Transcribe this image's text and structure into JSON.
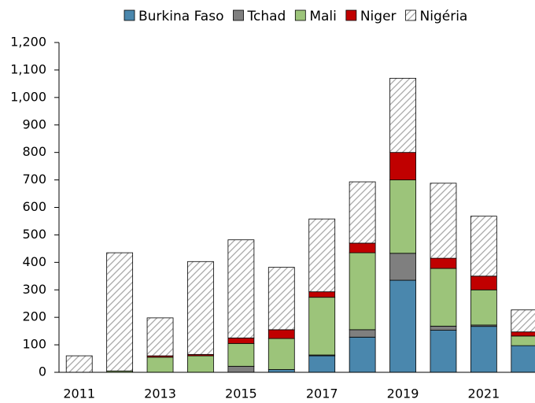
{
  "chart_data": {
    "type": "stacked_bar",
    "categories": [
      "2011",
      null,
      "2013",
      null,
      "2015",
      null,
      "2017",
      null,
      "2019",
      null,
      "2021",
      null
    ],
    "series": [
      {
        "name": "Burkina Faso",
        "color": "#4a87ad",
        "values": [
          0,
          0,
          0,
          0,
          0,
          10,
          60,
          128,
          335,
          153,
          167,
          97
        ]
      },
      {
        "name": "Tchad",
        "color": "#7f7f7f",
        "values": [
          0,
          0,
          0,
          0,
          22,
          0,
          3,
          27,
          98,
          15,
          5,
          0
        ]
      },
      {
        "name": "Mali",
        "color": "#9cc47a",
        "values": [
          0,
          5,
          55,
          60,
          83,
          113,
          210,
          280,
          267,
          210,
          128,
          35
        ]
      },
      {
        "name": "Niger",
        "color": "#c00000",
        "values": [
          0,
          0,
          5,
          5,
          20,
          32,
          20,
          35,
          100,
          37,
          50,
          15
        ]
      },
      {
        "name": "Nigéria",
        "color": "#a6a6a6",
        "pattern": "hatch",
        "values": [
          60,
          430,
          138,
          338,
          357,
          227,
          265,
          223,
          270,
          273,
          218,
          80
        ]
      }
    ],
    "ylim": [
      0,
      1200
    ],
    "yticks": [
      0,
      100,
      200,
      300,
      400,
      500,
      600,
      700,
      800,
      900,
      {
        "value": 1000,
        "label": "1,000"
      },
      {
        "value": 1100,
        "label": "1,100"
      },
      {
        "value": 1200,
        "label": "1,200"
      }
    ],
    "legend": "top",
    "grid": false
  }
}
